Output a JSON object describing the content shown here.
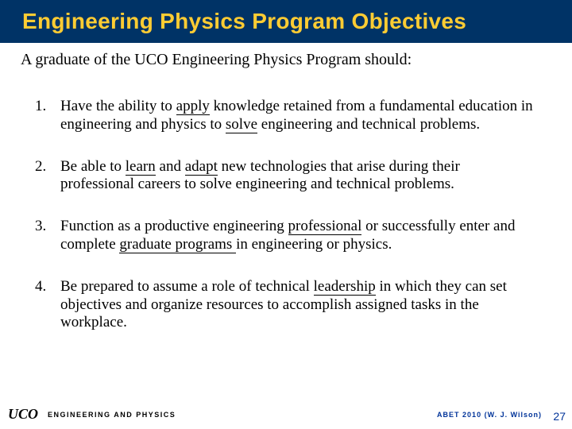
{
  "title": "Engineering Physics Program Objectives",
  "intro": "A graduate of the UCO Engineering Physics Program should:",
  "objectives": [
    {
      "num": "1.",
      "segments": [
        {
          "t": "Have the ability to ",
          "u": false
        },
        {
          "t": "apply",
          "u": true
        },
        {
          "t": " knowledge retained from a fundamental education in engineering and physics to ",
          "u": false
        },
        {
          "t": "solve",
          "u": true
        },
        {
          "t": " engineering and technical problems.",
          "u": false
        }
      ]
    },
    {
      "num": "2.",
      "segments": [
        {
          "t": "Be able to ",
          "u": false
        },
        {
          "t": "learn",
          "u": true
        },
        {
          "t": " and ",
          "u": false
        },
        {
          "t": "adapt",
          "u": true
        },
        {
          "t": " new technologies that arise during their professional careers to solve engineering and technical problems.",
          "u": false
        }
      ]
    },
    {
      "num": "3.",
      "segments": [
        {
          "t": "Function as a productive engineering ",
          "u": false
        },
        {
          "t": "professional",
          "u": true
        },
        {
          "t": " or successfully enter and complete ",
          "u": false
        },
        {
          "t": "graduate programs ",
          "u": true
        },
        {
          "t": "in engineering or physics.",
          "u": false
        }
      ]
    },
    {
      "num": "4.",
      "segments": [
        {
          "t": "Be prepared to assume a role of technical ",
          "u": false
        },
        {
          "t": "leadership",
          "u": true
        },
        {
          "t": " in which they can set objectives and organize resources to accomplish assigned tasks in the workplace.",
          "u": false
        }
      ]
    }
  ],
  "footer": {
    "brand": "UCO",
    "dept": "ENGINEERING AND PHYSICS",
    "right": "ABET 2010 (W. J. Wilson)"
  },
  "page_number": "27",
  "colors": {
    "title_bg": "#003366",
    "title_fg": "#ffcc33",
    "accent": "#003399"
  }
}
